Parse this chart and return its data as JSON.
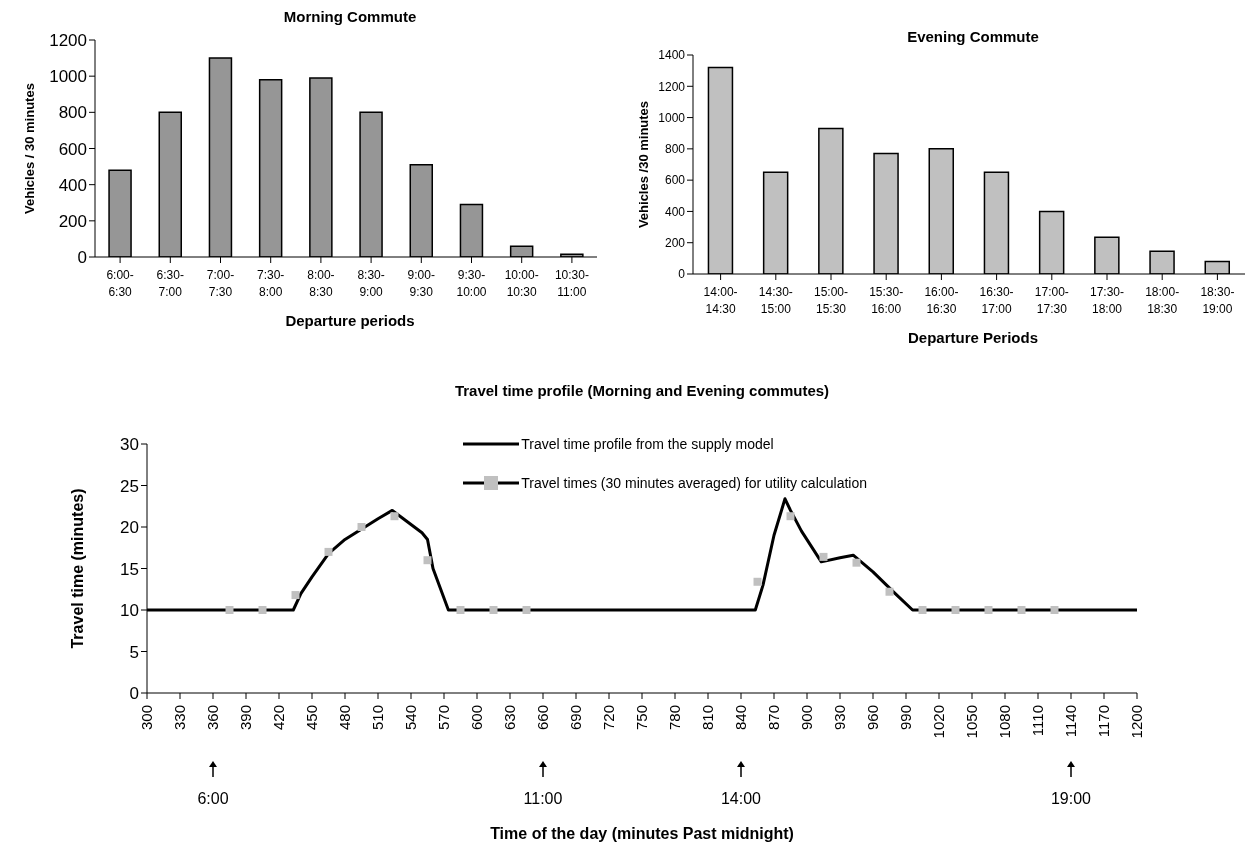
{
  "chart_data": [
    {
      "type": "bar",
      "title": "Morning Commute",
      "xlabel": "Departure periods",
      "ylabel": "Vehicles / 30 minutes",
      "categories": [
        "6:00-6:30",
        "6:30-7:00",
        "7:00-7:30",
        "7:30-8:00",
        "8:00-8:30",
        "8:30-9:00",
        "9:00-9:30",
        "9:30-10:00",
        "10:00-10:30",
        "10:30-11:00"
      ],
      "values": [
        480,
        800,
        1100,
        980,
        990,
        800,
        510,
        290,
        60,
        15
      ],
      "color": "#969696",
      "ylim": [
        0,
        1200
      ],
      "yticks": [
        0,
        200,
        400,
        600,
        800,
        1000,
        1200
      ],
      "grid": false,
      "legend": false
    },
    {
      "type": "bar",
      "title": "Evening Commute",
      "xlabel": "Departure Periods",
      "ylabel": "Vehicles /30 minutes",
      "categories": [
        "14:00-14:30",
        "14:30-15:00",
        "15:00-15:30",
        "15:30-16:00",
        "16:00-16:30",
        "16:30-17:00",
        "17:00-17:30",
        "17:30-18:00",
        "18:00-18:30",
        "18:30-19:00"
      ],
      "values": [
        1320,
        650,
        930,
        770,
        800,
        650,
        400,
        235,
        145,
        80
      ],
      "color": "#c0c0c0",
      "ylim": [
        0,
        1400
      ],
      "yticks": [
        0,
        200,
        400,
        600,
        800,
        1000,
        1200,
        1400
      ],
      "grid": false,
      "legend": false
    },
    {
      "type": "line",
      "title": "Travel time profile (Morning and Evening commutes)",
      "xlabel": "Time of the day (minutes Past midnight)",
      "ylabel": "Travel time (minutes)",
      "xlim": [
        300,
        1200
      ],
      "xticks": [
        300,
        330,
        360,
        390,
        420,
        450,
        480,
        510,
        540,
        570,
        600,
        630,
        660,
        690,
        720,
        750,
        780,
        810,
        840,
        870,
        900,
        930,
        960,
        990,
        1020,
        1050,
        1080,
        1110,
        1140,
        1170,
        1200
      ],
      "ylim": [
        0,
        30
      ],
      "yticks": [
        0,
        5,
        10,
        15,
        20,
        25,
        30
      ],
      "grid": false,
      "legend": "top right",
      "line_style": "solid",
      "series": [
        {
          "name": "Travel time profile from the supply model",
          "type": "line",
          "marker": "none",
          "color": "#000000",
          "x": [
            300,
            433,
            440,
            450,
            465,
            480,
            510,
            523,
            530,
            550,
            555,
            560,
            574,
            853,
            860,
            870,
            880,
            885,
            895,
            913,
            930,
            942,
            960,
            980,
            996,
            1200
          ],
          "values": [
            10,
            10,
            12,
            14,
            16.8,
            18.5,
            21,
            22,
            21.3,
            19.3,
            18.5,
            15,
            10,
            10,
            13,
            19,
            23.4,
            22,
            19.5,
            15.8,
            16.3,
            16.6,
            14.6,
            12,
            10,
            10
          ]
        },
        {
          "name": "Travel times (30 minutes averaged) for utility calculation",
          "type": "scatter",
          "marker": "square",
          "color": "#c0c0c0",
          "x": [
            375,
            405,
            435,
            465,
            495,
            525,
            555,
            585,
            615,
            645,
            855,
            885,
            915,
            945,
            975,
            1005,
            1035,
            1065,
            1095,
            1125
          ],
          "values": [
            10,
            10,
            11.8,
            17,
            20,
            21.3,
            16,
            10,
            10,
            10,
            13.4,
            21.3,
            16.4,
            15.7,
            12.2,
            10,
            10,
            10,
            10,
            10
          ]
        }
      ],
      "annotations": [
        "6:00",
        "11:00",
        "14:00",
        "19:00"
      ]
    }
  ]
}
